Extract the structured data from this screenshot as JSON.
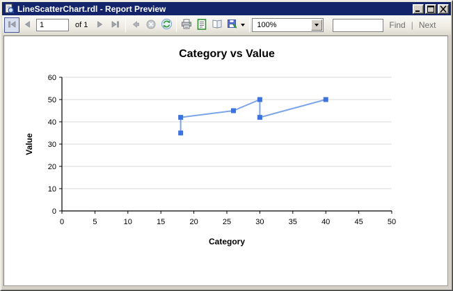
{
  "window": {
    "title": "LineScatterChart.rdl - Report Preview",
    "titlebar_color": "#13246B",
    "chrome_color": "#D4D0C8",
    "controls": [
      "minimize",
      "maximize",
      "close"
    ]
  },
  "toolbar": {
    "page_number": "1",
    "of_label": "of 1",
    "zoom_value": "100%",
    "find_value": "",
    "find_label": "Find",
    "find_next_separator": "|",
    "next_label": "Next",
    "icons": [
      "first-page",
      "previous-page",
      "next-page",
      "last-page",
      "back",
      "stop",
      "refresh",
      "print",
      "print-layout",
      "page-setup",
      "export",
      "zoom-dropdown"
    ]
  },
  "chart_data": {
    "type": "line",
    "title": "Category vs Value",
    "xlabel": "Category",
    "ylabel": "Value",
    "x": [
      18,
      18,
      26,
      30,
      30,
      40
    ],
    "y": [
      35,
      42,
      45,
      50,
      42,
      50
    ],
    "xlim": [
      0,
      50
    ],
    "ylim": [
      0,
      60
    ],
    "x_ticks": [
      0,
      5,
      10,
      15,
      20,
      25,
      30,
      35,
      40,
      45,
      50
    ],
    "y_ticks": [
      0,
      10,
      20,
      30,
      40,
      50,
      60
    ],
    "grid": "horizontal",
    "legend": "none",
    "marker": "square",
    "line_color": "#7CA5E8",
    "marker_color": "#3E72DC",
    "gridline_color": "#D9D9D9",
    "axis_color": "#000000",
    "text_color": "#000000"
  }
}
